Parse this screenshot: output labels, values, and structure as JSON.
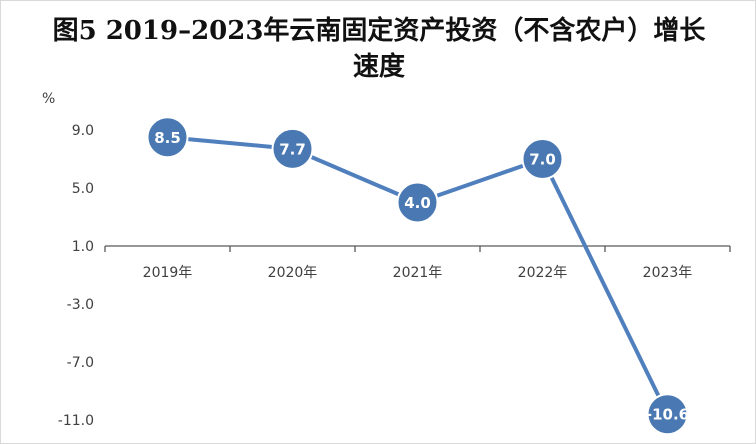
{
  "chart_data": {
    "type": "line",
    "title": "图5  2019–2023年云南固定资产投资（不含农户）增长速度",
    "ylabel": "%",
    "categories": [
      "2019年",
      "2020年",
      "2021年",
      "2022年",
      "2023年"
    ],
    "series": [
      {
        "values": [
          8.5,
          7.7,
          4.0,
          7.0,
          -10.6
        ]
      }
    ],
    "data_labels": [
      "8.5",
      "7.7",
      "4.0",
      "7.0",
      "-10.6"
    ],
    "yticks": [
      "9.0",
      "5.0",
      "1.0",
      "-3.0",
      "-7.0",
      "-11.0"
    ],
    "ytick_values": [
      9.0,
      5.0,
      1.0,
      -3.0,
      -7.0,
      -11.0
    ],
    "ylim": [
      -11.0,
      9.0
    ],
    "x_axis_crosses_at": 1.0,
    "grid": false,
    "legend": "none",
    "colors": {
      "line": "#4f7fbd",
      "marker": "#4a78b3",
      "marker_border": "#ffffff",
      "axis": "#595959"
    }
  }
}
